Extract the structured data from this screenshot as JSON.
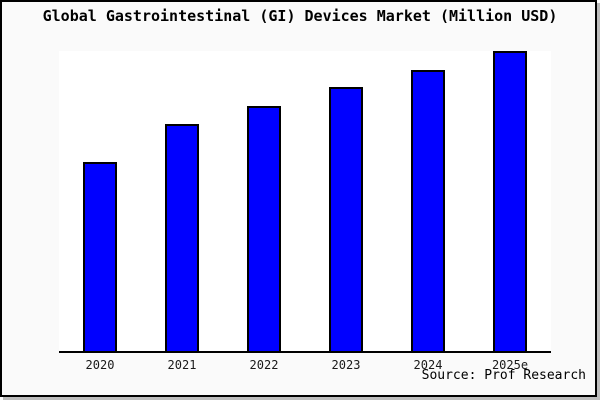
{
  "page": {
    "background": "#fafafa",
    "frame_border_color": "#000000",
    "frame_shadow_color": "#bdbdbd"
  },
  "header": {
    "title": "Global Gastrointestinal (GI) Devices Market (Million USD)"
  },
  "footer": {
    "source_label": "Source: Prof Research"
  },
  "chart_data": {
    "type": "bar",
    "title": "Global Gastrointestinal (GI) Devices Market (Million USD)",
    "categories": [
      "2020",
      "2021",
      "2022",
      "2023",
      "2024",
      "2025e"
    ],
    "values_relative_pct_of_max": [
      63.0,
      75.7,
      81.7,
      88.0,
      93.7,
      100.0
    ],
    "value_axis_note": "no y-axis, ticks, labels or gridlines shown; bar sizes estimated relative to tallest bar (2025e = 100)",
    "xlabel": "",
    "ylabel": "",
    "legend": "none",
    "grid": false,
    "bar_color": "#0000ff",
    "bar_border_color": "#000000",
    "plot_background": "#ffffff",
    "source": "Source: Prof Research"
  }
}
